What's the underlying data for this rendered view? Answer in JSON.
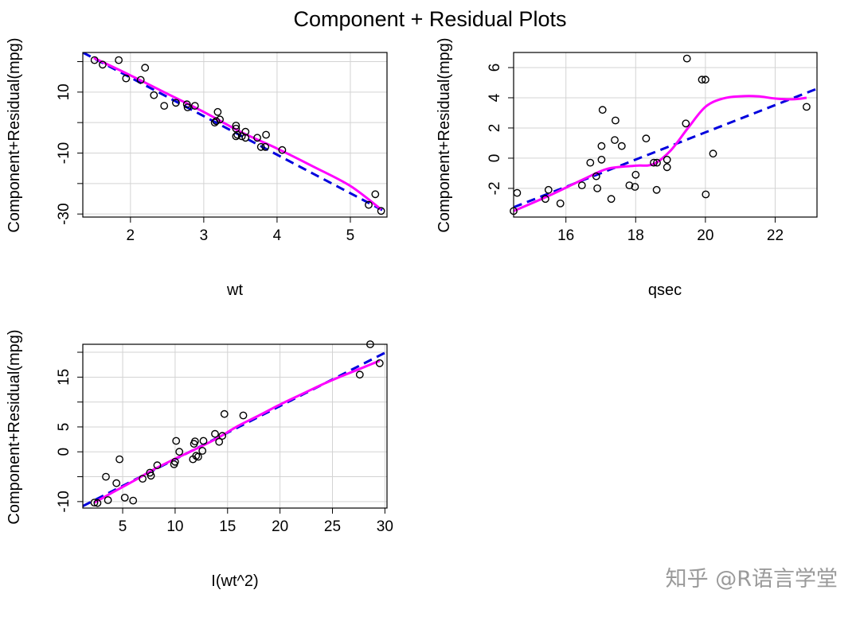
{
  "title": "Component + Residual Plots",
  "watermark": "知乎 @R语言学堂",
  "colors": {
    "fit_line": "#0000dd",
    "smooth_line": "#ff00ff",
    "points": "#000000",
    "grid": "#d3d3d3"
  },
  "chart_data": [
    {
      "type": "scatter",
      "xlabel": "wt",
      "ylabel": "Component+Residual(mpg)",
      "xlim": [
        1.35,
        5.5
      ],
      "ylim": [
        -31,
        23
      ],
      "x_ticks": [
        2,
        3,
        4,
        5
      ],
      "y_ticks": [
        -30,
        -20,
        -10,
        0,
        10,
        20
      ],
      "y_tick_labels": [
        "-30",
        "",
        "-10",
        "",
        "10",
        ""
      ],
      "grid": true,
      "points": [
        [
          1.51,
          20.5
        ],
        [
          1.62,
          19
        ],
        [
          1.84,
          20.5
        ],
        [
          1.94,
          14.5
        ],
        [
          2.14,
          14
        ],
        [
          2.2,
          18
        ],
        [
          2.32,
          9
        ],
        [
          2.46,
          5.5
        ],
        [
          2.62,
          6.5
        ],
        [
          2.77,
          6
        ],
        [
          2.78,
          5
        ],
        [
          2.88,
          5.5
        ],
        [
          3.15,
          0
        ],
        [
          3.17,
          0.5
        ],
        [
          3.19,
          3.5
        ],
        [
          3.22,
          1
        ],
        [
          3.44,
          -1
        ],
        [
          3.44,
          -2
        ],
        [
          3.44,
          -4.5
        ],
        [
          3.46,
          -4
        ],
        [
          3.52,
          -4.5
        ],
        [
          3.57,
          -5
        ],
        [
          3.57,
          -3
        ],
        [
          3.73,
          -5
        ],
        [
          3.78,
          -8
        ],
        [
          3.84,
          -8
        ],
        [
          3.85,
          -4
        ],
        [
          4.07,
          -9
        ],
        [
          5.25,
          -27
        ],
        [
          5.34,
          -23.5
        ],
        [
          5.42,
          -29
        ]
      ],
      "series": [
        {
          "name": "linear",
          "style": "dashed",
          "points": [
            [
              1.35,
              23
            ],
            [
              5.5,
              -29.5
            ]
          ]
        },
        {
          "name": "smooth",
          "style": "solid",
          "points": [
            [
              1.5,
              21.2
            ],
            [
              2,
              15.5
            ],
            [
              2.5,
              9.5
            ],
            [
              3,
              3.5
            ],
            [
              3.5,
              -3
            ],
            [
              4,
              -8.5
            ],
            [
              4.5,
              -14.5
            ],
            [
              5,
              -20.8
            ],
            [
              5.42,
              -28.5
            ]
          ]
        }
      ]
    },
    {
      "type": "scatter",
      "xlabel": "qsec",
      "ylabel": "Component+Residual(mpg)",
      "xlim": [
        14.5,
        23.2
      ],
      "ylim": [
        -3.9,
        7
      ],
      "x_ticks": [
        16,
        18,
        20,
        22
      ],
      "y_ticks": [
        -2,
        0,
        2,
        4,
        6
      ],
      "y_tick_labels": [
        "-2",
        "0",
        "2",
        "4",
        "6"
      ],
      "grid": true,
      "points": [
        [
          14.5,
          -3.5
        ],
        [
          14.6,
          -2.3
        ],
        [
          15.41,
          -2.7
        ],
        [
          15.5,
          -2.1
        ],
        [
          15.84,
          -3
        ],
        [
          16.46,
          -1.8
        ],
        [
          16.7,
          -0.3
        ],
        [
          16.87,
          -1.2
        ],
        [
          16.9,
          -2
        ],
        [
          17.02,
          0.8
        ],
        [
          17.02,
          -0.1
        ],
        [
          17.05,
          3.2
        ],
        [
          17.3,
          -2.7
        ],
        [
          17.4,
          1.2
        ],
        [
          17.42,
          2.5
        ],
        [
          17.6,
          0.8
        ],
        [
          17.82,
          -1.8
        ],
        [
          17.98,
          -1.9
        ],
        [
          18,
          -1.1
        ],
        [
          18.3,
          1.3
        ],
        [
          18.52,
          -0.3
        ],
        [
          18.6,
          -2.1
        ],
        [
          18.61,
          -0.3
        ],
        [
          18.9,
          -0.1
        ],
        [
          18.9,
          -0.6
        ],
        [
          19.44,
          2.3
        ],
        [
          19.47,
          6.6
        ],
        [
          19.9,
          5.2
        ],
        [
          20,
          5.2
        ],
        [
          20.01,
          -2.4
        ],
        [
          20.22,
          0.3
        ],
        [
          22.9,
          3.4
        ]
      ],
      "series": [
        {
          "name": "linear",
          "style": "dashed",
          "points": [
            [
              14.5,
              -3.25
            ],
            [
              23.2,
              4.6
            ]
          ]
        },
        {
          "name": "smooth",
          "style": "solid",
          "points": [
            [
              14.5,
              -3.5
            ],
            [
              15.5,
              -2.5
            ],
            [
              16.5,
              -1.4
            ],
            [
              17.2,
              -0.7
            ],
            [
              18,
              -0.5
            ],
            [
              18.5,
              -0.4
            ],
            [
              19,
              0.5
            ],
            [
              19.5,
              2
            ],
            [
              20,
              3.4
            ],
            [
              20.5,
              3.95
            ],
            [
              21,
              4.1
            ],
            [
              21.5,
              4.1
            ],
            [
              22,
              3.95
            ],
            [
              22.5,
              3.9
            ],
            [
              22.9,
              4
            ]
          ]
        }
      ]
    },
    {
      "type": "scatter",
      "xlabel": "I(wt^2)",
      "ylabel": "Component+Residual(mpg)",
      "xlim": [
        1.2,
        30.2
      ],
      "ylim": [
        -11.3,
        21.6
      ],
      "x_ticks": [
        5,
        10,
        15,
        20,
        25,
        30
      ],
      "y_ticks": [
        -10,
        -5,
        0,
        5,
        10,
        15,
        20
      ],
      "y_tick_labels": [
        "-10",
        "",
        "0",
        "5",
        "",
        "15",
        ""
      ],
      "grid": true,
      "points": [
        [
          2.3,
          -10.2
        ],
        [
          2.6,
          -10.3
        ],
        [
          3.4,
          -5
        ],
        [
          3.6,
          -9.7
        ],
        [
          4.4,
          -6.3
        ],
        [
          4.7,
          -1.5
        ],
        [
          5.2,
          -9.2
        ],
        [
          6,
          -9.8
        ],
        [
          6.9,
          -5.4
        ],
        [
          7.6,
          -4.2
        ],
        [
          7.7,
          -4.8
        ],
        [
          8.3,
          -2.7
        ],
        [
          9.9,
          -2.5
        ],
        [
          10,
          -2
        ],
        [
          10.1,
          2.2
        ],
        [
          10.4,
          0
        ],
        [
          11.7,
          -1.5
        ],
        [
          11.8,
          1.6
        ],
        [
          11.9,
          2.1
        ],
        [
          12,
          -0.8
        ],
        [
          12.2,
          -1
        ],
        [
          12.6,
          0.2
        ],
        [
          12.7,
          2.2
        ],
        [
          13.8,
          3.6
        ],
        [
          14.2,
          2
        ],
        [
          14.5,
          3.2
        ],
        [
          14.7,
          7.6
        ],
        [
          16.5,
          7.3
        ],
        [
          27.6,
          15.5
        ],
        [
          28.6,
          21.6
        ],
        [
          29.5,
          17.8
        ]
      ],
      "series": [
        {
          "name": "linear",
          "style": "dashed",
          "points": [
            [
              1.2,
              -10.9
            ],
            [
              30.2,
              20.1
            ]
          ]
        },
        {
          "name": "smooth",
          "style": "solid",
          "points": [
            [
              2.3,
              -10.2
            ],
            [
              4,
              -8.2
            ],
            [
              6,
              -5.9
            ],
            [
              8,
              -3.5
            ],
            [
              10,
              -1.4
            ],
            [
              12,
              0.6
            ],
            [
              14,
              2.7
            ],
            [
              16,
              5.2
            ],
            [
              18,
              7.3
            ],
            [
              20,
              9.5
            ],
            [
              22,
              11.5
            ],
            [
              24,
              13.5
            ],
            [
              26,
              15.3
            ],
            [
              28,
              17
            ],
            [
              29.5,
              18.3
            ]
          ]
        }
      ]
    }
  ]
}
